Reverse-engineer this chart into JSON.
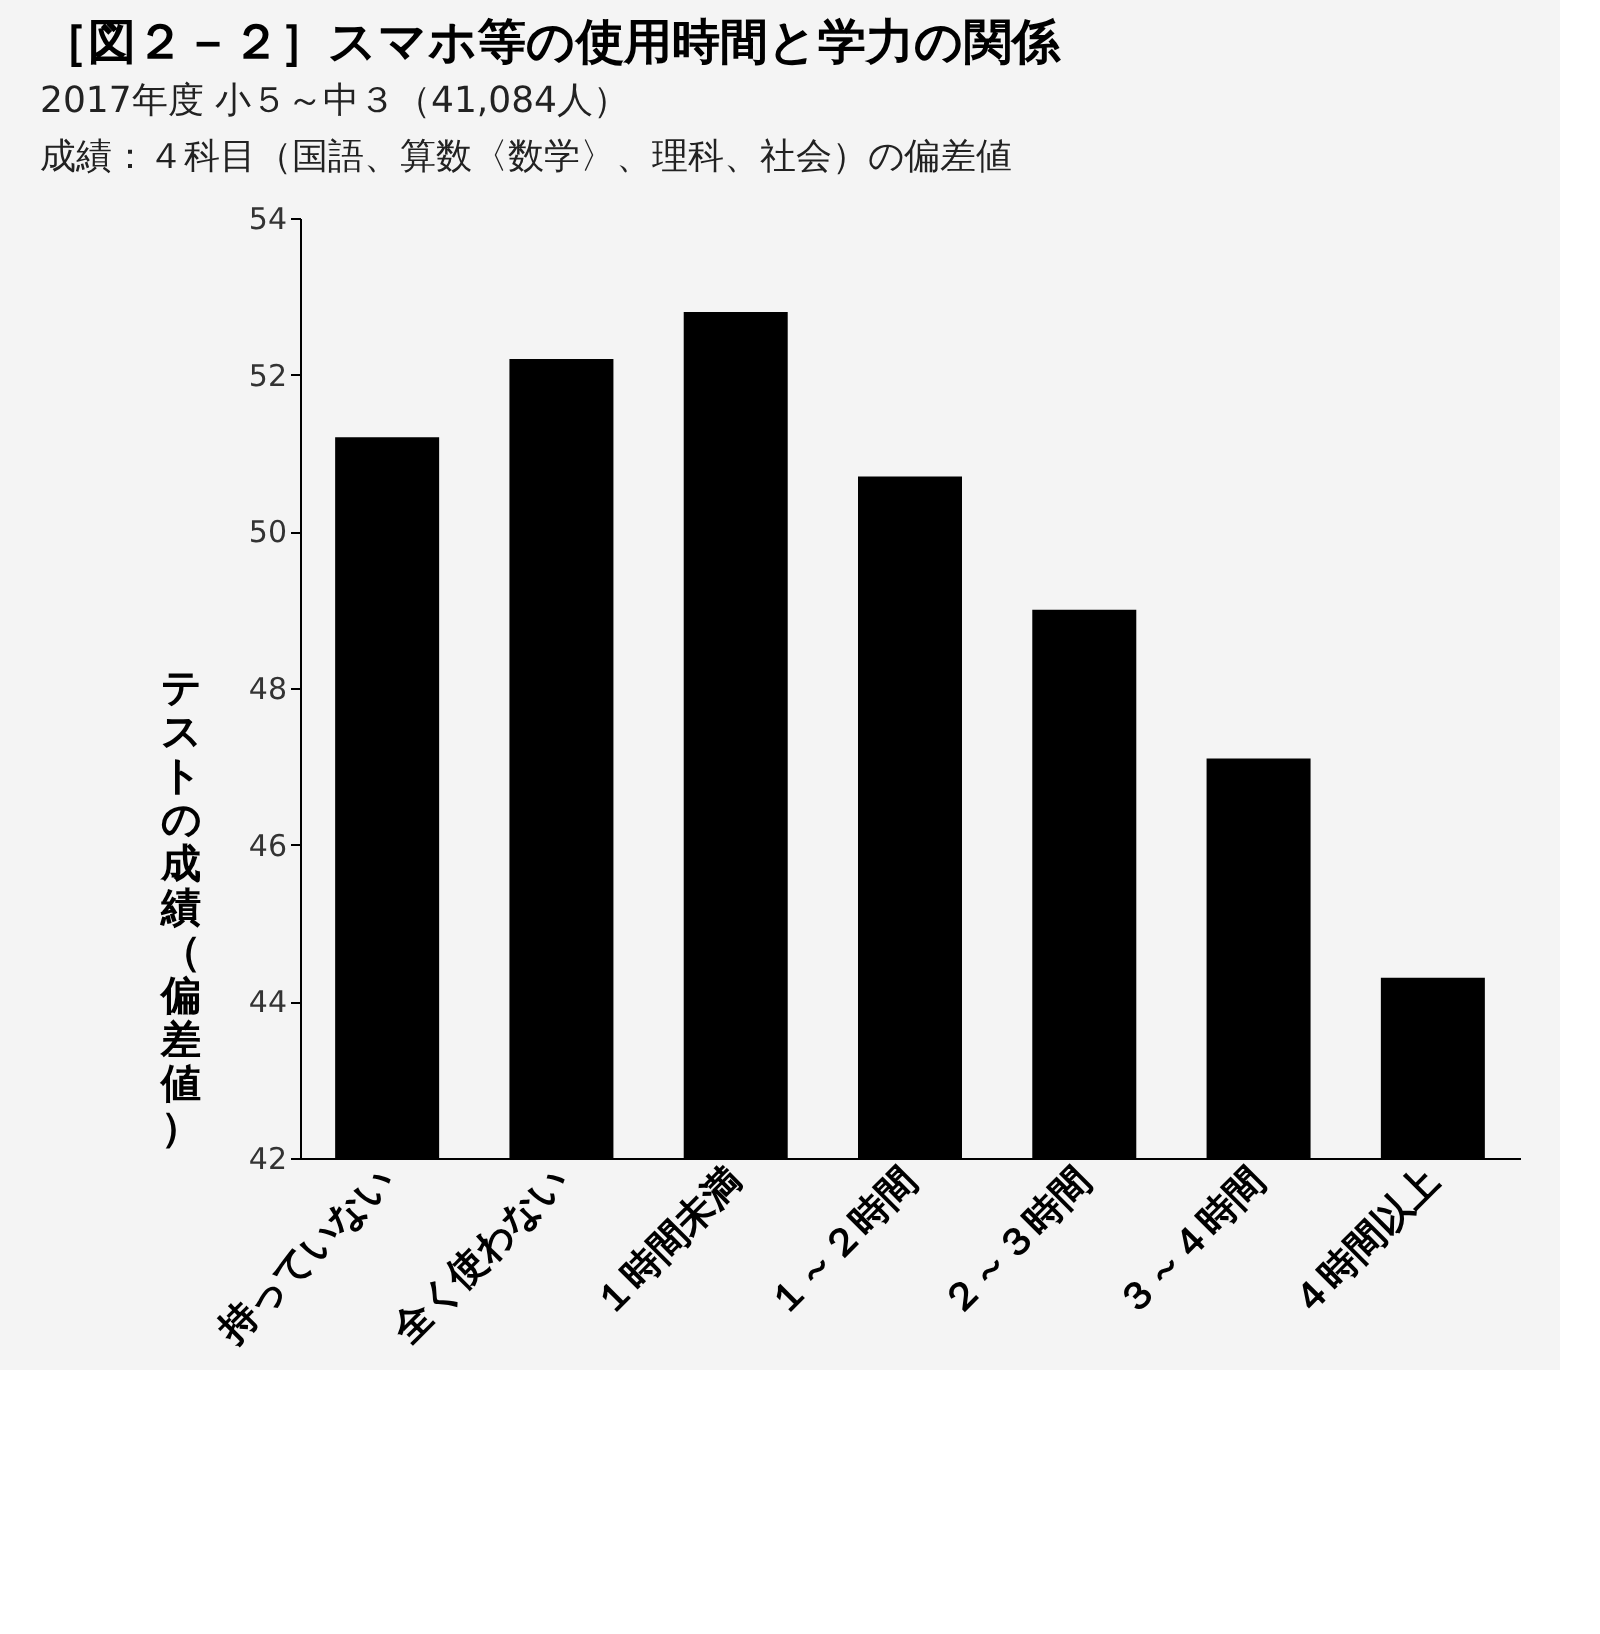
{
  "chart_data": {
    "type": "bar",
    "title": "［図２－２］スマホ等の使用時間と学力の関係",
    "subtitle": "2017年度 小５～中３（41,084人）",
    "annotations": [
      "成績：４科目（国語、算数〈数学〉、理科、社会）の偏差値"
    ],
    "ylabel": "テストの成績（偏差値）",
    "categories": [
      "持っていない",
      "全く使わない",
      "１時間未満",
      "１～２時間",
      "２～３時間",
      "３～４時間",
      "４時間以上"
    ],
    "values": [
      51.2,
      52.2,
      52.8,
      50.7,
      49.0,
      47.1,
      44.3
    ],
    "color": "#000000",
    "ylim": [
      42,
      54
    ],
    "yticks": [
      42,
      44,
      46,
      48,
      50,
      52,
      54
    ],
    "grid": false
  }
}
